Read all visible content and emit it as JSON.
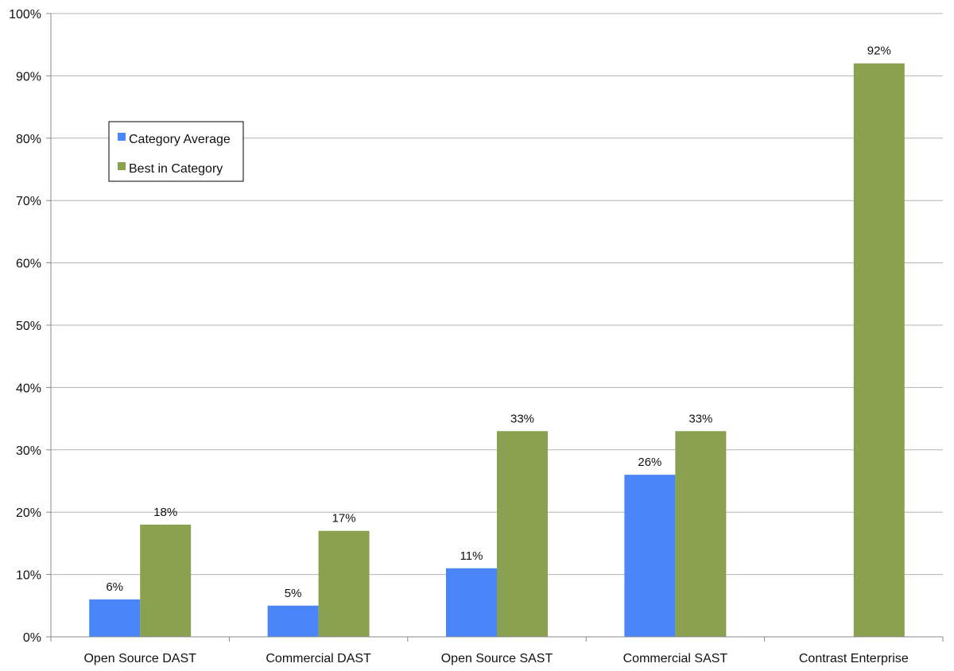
{
  "chart_data": {
    "type": "bar",
    "title": "",
    "xlabel": "",
    "ylabel": "",
    "categories": [
      "Open Source DAST",
      "Commercial DAST",
      "Open Source SAST",
      "Commercial SAST",
      "Contrast Enterprise"
    ],
    "series": [
      {
        "name": "Category Average",
        "color": "#4a86f7",
        "values": [
          6,
          5,
          11,
          26,
          null
        ],
        "labels": [
          "6%",
          "5%",
          "11%",
          "26%",
          ""
        ]
      },
      {
        "name": "Best in Category",
        "color": "#8aa24f",
        "values": [
          18,
          17,
          33,
          33,
          92
        ],
        "labels": [
          "18%",
          "17%",
          "33%",
          "33%",
          "92%"
        ]
      }
    ],
    "ylim": [
      0,
      100
    ],
    "yticks": [
      "0%",
      "10%",
      "20%",
      "30%",
      "40%",
      "50%",
      "60%",
      "70%",
      "80%",
      "90%",
      "100%"
    ],
    "grid": true,
    "legend_position": "top-left"
  }
}
